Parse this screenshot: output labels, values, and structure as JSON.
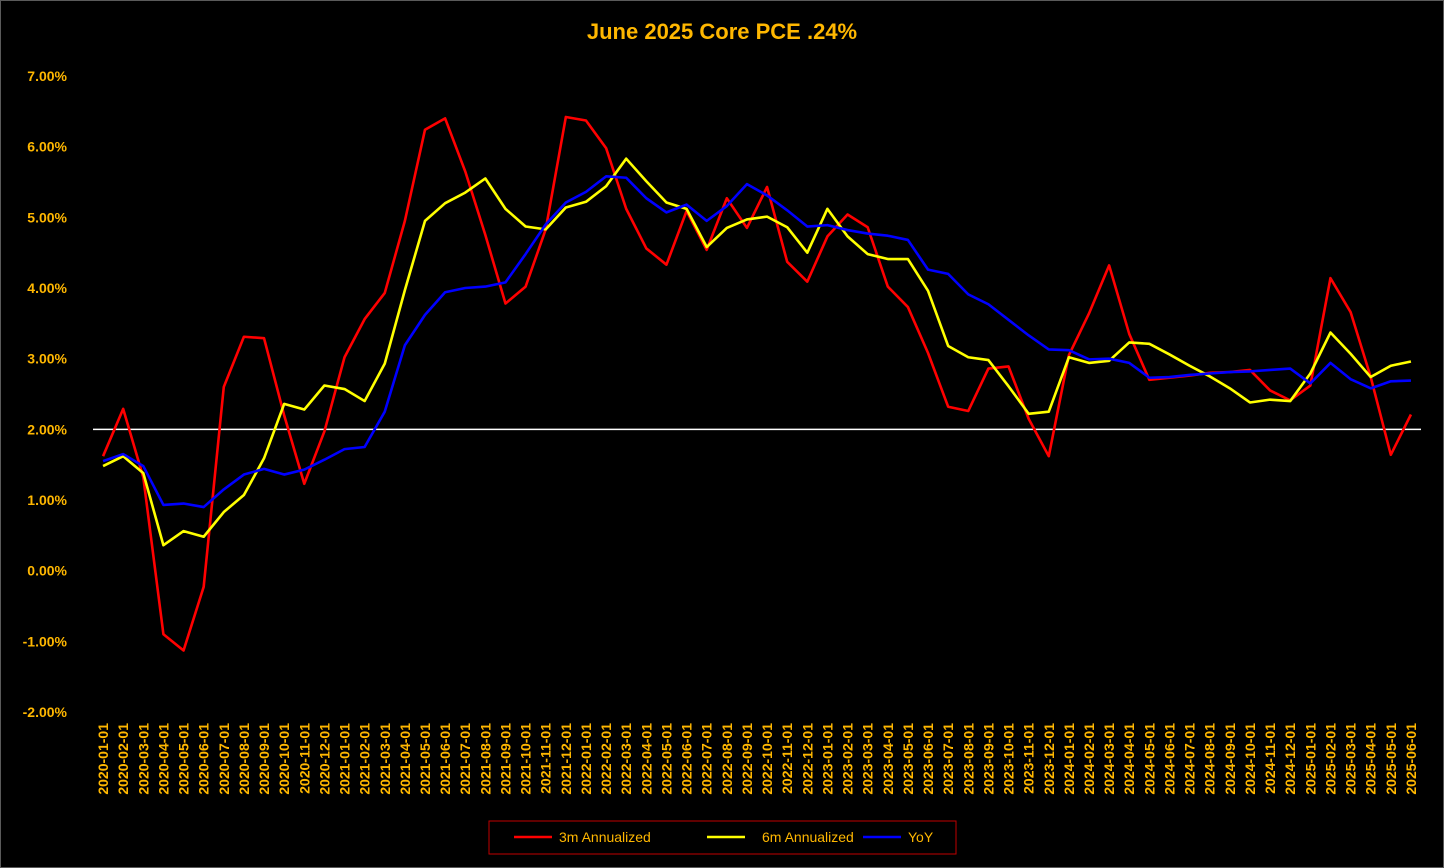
{
  "chart_data": {
    "type": "line",
    "title": "June 2025 Core PCE .24%",
    "xlabel": "",
    "ylabel": "",
    "ylim": [
      -2,
      7
    ],
    "yticks": [
      "-2.00%",
      "-1.00%",
      "0.00%",
      "1.00%",
      "2.00%",
      "3.00%",
      "4.00%",
      "5.00%",
      "6.00%",
      "7.00%"
    ],
    "reference_line": 2.0,
    "grid": false,
    "legend_position": "bottom",
    "categories": [
      "2020-01-01",
      "2020-02-01",
      "2020-03-01",
      "2020-04-01",
      "2020-05-01",
      "2020-06-01",
      "2020-07-01",
      "2020-08-01",
      "2020-09-01",
      "2020-10-01",
      "2020-11-01",
      "2020-12-01",
      "2021-01-01",
      "2021-02-01",
      "2021-03-01",
      "2021-04-01",
      "2021-05-01",
      "2021-06-01",
      "2021-07-01",
      "2021-08-01",
      "2021-09-01",
      "2021-10-01",
      "2021-11-01",
      "2021-12-01",
      "2022-01-01",
      "2022-02-01",
      "2022-03-01",
      "2022-04-01",
      "2022-05-01",
      "2022-06-01",
      "2022-07-01",
      "2022-08-01",
      "2022-09-01",
      "2022-10-01",
      "2022-11-01",
      "2022-12-01",
      "2023-01-01",
      "2023-02-01",
      "2023-03-01",
      "2023-04-01",
      "2023-05-01",
      "2023-06-01",
      "2023-07-01",
      "2023-08-01",
      "2023-09-01",
      "2023-10-01",
      "2023-11-01",
      "2023-12-01",
      "2024-01-01",
      "2024-02-01",
      "2024-03-01",
      "2024-04-01",
      "2024-05-01",
      "2024-06-01",
      "2024-07-01",
      "2024-08-01",
      "2024-09-01",
      "2024-10-01",
      "2024-11-01",
      "2024-12-01",
      "2025-01-01",
      "2025-02-01",
      "2025-03-01",
      "2025-04-01",
      "2025-05-01",
      "2025-06-01"
    ],
    "series": [
      {
        "name": "3m Annualized",
        "color": "#ff0000",
        "values": [
          1.62,
          2.29,
          1.32,
          -0.9,
          -1.13,
          -0.23,
          2.6,
          3.31,
          3.29,
          2.2,
          1.23,
          1.97,
          3.02,
          3.56,
          3.93,
          4.95,
          6.24,
          6.4,
          5.65,
          4.75,
          3.78,
          4.02,
          4.83,
          6.42,
          6.37,
          5.98,
          5.12,
          4.56,
          4.33,
          5.09,
          4.54,
          5.27,
          4.85,
          5.43,
          4.37,
          4.09,
          4.73,
          5.04,
          4.86,
          4.02,
          3.73,
          3.08,
          2.32,
          2.26,
          2.86,
          2.89,
          2.15,
          1.62,
          3.05,
          3.64,
          4.32,
          3.35,
          2.7,
          2.73,
          2.76,
          2.8,
          2.81,
          2.84,
          2.55,
          2.41,
          2.62,
          4.14,
          3.66,
          2.74,
          1.64,
          2.21
        ]
      },
      {
        "name": "6m Annualized",
        "color": "#ffff00",
        "values": [
          1.48,
          1.62,
          1.38,
          0.36,
          0.56,
          0.48,
          0.83,
          1.07,
          1.59,
          2.36,
          2.28,
          2.62,
          2.57,
          2.4,
          2.93,
          3.97,
          4.95,
          5.2,
          5.35,
          5.55,
          5.12,
          4.87,
          4.83,
          5.14,
          5.22,
          5.44,
          5.83,
          5.51,
          5.21,
          5.12,
          4.58,
          4.85,
          4.97,
          5.01,
          4.86,
          4.5,
          5.12,
          4.73,
          4.48,
          4.41,
          4.41,
          3.96,
          3.18,
          3.02,
          2.98,
          2.61,
          2.22,
          2.25,
          3.02,
          2.94,
          2.97,
          3.23,
          3.21,
          3.06,
          2.9,
          2.75,
          2.58,
          2.38,
          2.42,
          2.4,
          2.79,
          3.37,
          3.07,
          2.74,
          2.9,
          2.96
        ]
      },
      {
        "name": "YoY",
        "color": "#0000ff",
        "values": [
          1.55,
          1.65,
          1.48,
          0.93,
          0.95,
          0.9,
          1.15,
          1.36,
          1.44,
          1.36,
          1.43,
          1.57,
          1.72,
          1.75,
          2.25,
          3.19,
          3.62,
          3.94,
          4.0,
          4.02,
          4.08,
          4.48,
          4.9,
          5.21,
          5.36,
          5.58,
          5.56,
          5.27,
          5.07,
          5.18,
          4.95,
          5.16,
          5.47,
          5.31,
          5.1,
          4.87,
          4.89,
          4.82,
          4.77,
          4.74,
          4.68,
          4.26,
          4.2,
          3.91,
          3.77,
          3.55,
          3.33,
          3.13,
          3.12,
          2.99,
          3.0,
          2.94,
          2.73,
          2.74,
          2.77,
          2.79,
          2.81,
          2.82,
          2.84,
          2.86,
          2.65,
          2.94,
          2.71,
          2.58,
          2.68,
          2.69
        ]
      }
    ]
  },
  "colors": {
    "background": "#000000",
    "tick_label": "#ffb700",
    "title": "#ffb700",
    "reference_line": "#ffffff",
    "legend_text": "#ffb700",
    "legend_border": "#c00000"
  }
}
